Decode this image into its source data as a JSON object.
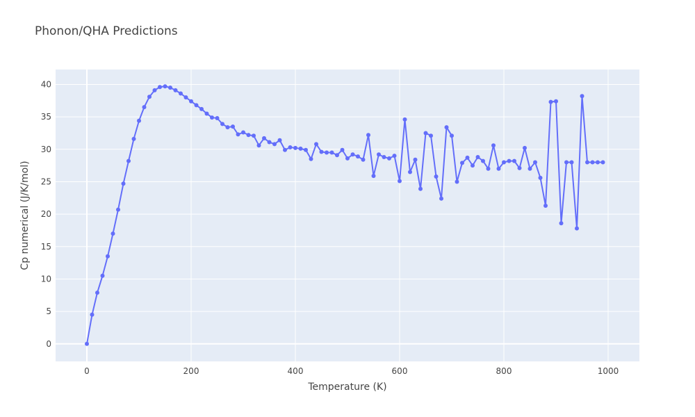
{
  "chart_data": {
    "type": "line",
    "title": "Phonon/QHA Predictions",
    "xlabel": "Temperature (K)",
    "ylabel": "Cp numerical (J/K/mol)",
    "xlim": [
      -60,
      1060
    ],
    "ylim": [
      -2.7,
      42.3
    ],
    "xticks": [
      0,
      200,
      400,
      600,
      800,
      1000
    ],
    "yticks": [
      0,
      5,
      10,
      15,
      20,
      25,
      30,
      35,
      40
    ],
    "grid": true,
    "legend": "none",
    "colors": {
      "series": "#636efa",
      "plot_bg": "#e5ecf6",
      "grid": "#ffffff"
    },
    "series": [
      {
        "x": [
          0,
          10,
          20,
          30,
          40,
          50,
          60,
          70,
          80,
          90,
          100,
          110,
          120,
          130,
          140,
          150,
          160,
          170,
          180,
          190,
          200,
          210,
          220,
          230,
          240,
          250,
          260,
          270,
          280,
          290,
          300,
          310,
          320,
          330,
          340,
          350,
          360,
          370,
          380,
          390,
          400,
          410,
          420,
          430,
          440,
          450,
          460,
          470,
          480,
          490,
          500,
          510,
          520,
          530,
          540,
          550,
          560,
          570,
          580,
          590,
          600,
          610,
          620,
          630,
          640,
          650,
          660,
          670,
          680,
          690,
          700,
          710,
          720,
          730,
          740,
          750,
          760,
          770,
          780,
          790,
          800,
          810,
          820,
          830,
          840,
          850,
          860,
          870,
          880,
          890,
          900,
          910,
          920,
          930,
          940,
          950,
          960,
          970,
          980,
          990
        ],
        "y": [
          0,
          4.5,
          7.9,
          10.5,
          13.5,
          17.0,
          20.7,
          24.7,
          28.2,
          31.6,
          34.4,
          36.5,
          38.1,
          39.1,
          39.6,
          39.7,
          39.5,
          39.1,
          38.6,
          38.0,
          37.4,
          36.8,
          36.2,
          35.5,
          34.9,
          34.8,
          33.9,
          33.4,
          33.5,
          32.3,
          32.6,
          32.2,
          32.1,
          30.6,
          31.7,
          31.1,
          30.8,
          31.4,
          29.9,
          30.3,
          30.2,
          30.1,
          29.9,
          28.5,
          30.8,
          29.6,
          29.5,
          29.5,
          29.1,
          29.9,
          28.6,
          29.2,
          28.9,
          28.4,
          32.2,
          25.9,
          29.2,
          28.8,
          28.6,
          29.0,
          25.1,
          34.6,
          26.5,
          28.4,
          23.9,
          32.5,
          32.1,
          25.8,
          22.4,
          33.4,
          32.1,
          25.0,
          27.9,
          28.7,
          27.5,
          28.8,
          28.2,
          27.0,
          30.6,
          27.0,
          28.0,
          28.2,
          28.2,
          27.1,
          30.2,
          27.0,
          28.0,
          25.6,
          21.3,
          37.3,
          37.4,
          18.6,
          28.0,
          28.0,
          17.8,
          38.2,
          28.0,
          28.0,
          28.0,
          28.0
        ]
      }
    ]
  }
}
